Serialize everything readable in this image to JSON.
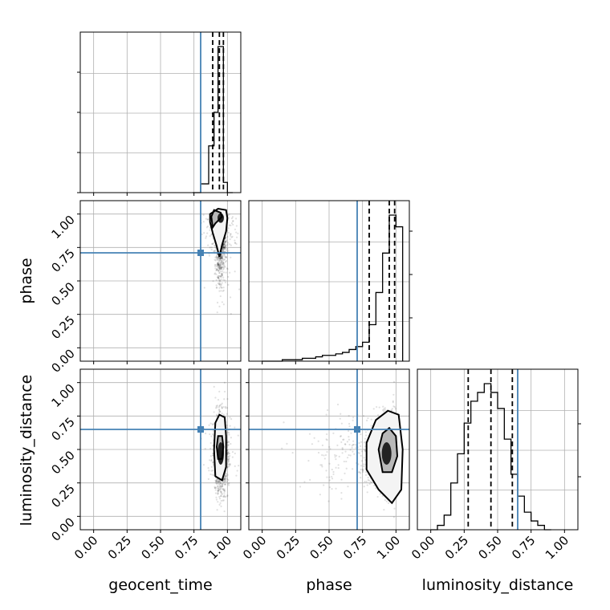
{
  "chart_data": {
    "type": "corner",
    "parameters": [
      "geocent_time",
      "phase",
      "luminosity_distance"
    ],
    "axis_range": [
      -0.1,
      1.1
    ],
    "ticks": [
      "0.00",
      "0.25",
      "0.50",
      "0.75",
      "1.00"
    ],
    "tick_values": [
      0,
      0.25,
      0.5,
      0.75,
      1.0
    ],
    "grid": true,
    "truths": {
      "geocent_time": 0.8,
      "phase": 0.71,
      "luminosity_distance": 0.65
    },
    "truth_color": "#4682b4",
    "histograms": {
      "geocent_time": {
        "bin_edges": [
          0.74,
          0.8,
          0.86,
          0.9,
          0.93,
          0.97,
          1.0,
          1.04
        ],
        "counts": [
          0.0,
          0.06,
          0.32,
          0.55,
          1.0,
          0.07,
          0.0
        ],
        "quantiles": [
          0.89,
          0.94,
          0.97
        ]
      },
      "phase": {
        "bin_edges": [
          0.0,
          0.05,
          0.1,
          0.15,
          0.2,
          0.25,
          0.3,
          0.35,
          0.4,
          0.45,
          0.5,
          0.55,
          0.6,
          0.65,
          0.7,
          0.75,
          0.8,
          0.85,
          0.9,
          0.95,
          1.0,
          1.05
        ],
        "counts": [
          0.0,
          0.0,
          0.0,
          0.01,
          0.01,
          0.01,
          0.02,
          0.02,
          0.03,
          0.04,
          0.04,
          0.05,
          0.06,
          0.08,
          0.1,
          0.13,
          0.25,
          0.47,
          0.74,
          1.0,
          0.92
        ],
        "quantiles": [
          0.8,
          0.95,
          0.99
        ]
      },
      "luminosity_distance": {
        "bin_edges": [
          0.0,
          0.05,
          0.1,
          0.15,
          0.2,
          0.25,
          0.3,
          0.35,
          0.4,
          0.45,
          0.5,
          0.55,
          0.6,
          0.65,
          0.7,
          0.75,
          0.8,
          0.85,
          0.9
        ],
        "counts": [
          0.0,
          0.03,
          0.1,
          0.32,
          0.52,
          0.73,
          0.88,
          0.94,
          1.0,
          0.94,
          0.83,
          0.62,
          0.38,
          0.23,
          0.12,
          0.06,
          0.03,
          0.0
        ],
        "quantiles": [
          0.28,
          0.45,
          0.61
        ]
      }
    },
    "scatter_centers": {
      "phase_vs_geocent_time": [
        0.95,
        0.85
      ],
      "luminosity_distance_vs_geocent_time": [
        0.95,
        0.47
      ],
      "luminosity_distance_vs_phase": [
        0.93,
        0.47
      ]
    },
    "contours": {
      "phase_vs_geocent_time": [
        [
          [
            0.91,
            0.93
          ],
          [
            0.96,
            0.98
          ],
          [
            0.95,
            1.01
          ],
          [
            0.9,
            1.03
          ],
          [
            0.88,
            0.98
          ],
          [
            0.89,
            0.9
          ],
          [
            0.91,
            0.93
          ]
        ],
        [
          [
            0.87,
            1.0
          ],
          [
            0.93,
            1.04
          ],
          [
            0.99,
            1.03
          ],
          [
            1.0,
            0.97
          ],
          [
            0.99,
            0.87
          ],
          [
            0.96,
            0.77
          ],
          [
            0.94,
            0.68
          ],
          [
            0.92,
            0.76
          ],
          [
            0.89,
            0.86
          ],
          [
            0.87,
            0.94
          ],
          [
            0.87,
            1.0
          ]
        ]
      ],
      "luminosity_distance_vs_geocent_time": [
        [
          [
            0.93,
            0.43
          ],
          [
            0.96,
            0.43
          ],
          [
            0.97,
            0.52
          ],
          [
            0.96,
            0.6
          ],
          [
            0.93,
            0.6
          ],
          [
            0.92,
            0.52
          ],
          [
            0.93,
            0.43
          ]
        ],
        [
          [
            0.91,
            0.3
          ],
          [
            0.96,
            0.27
          ],
          [
            0.99,
            0.37
          ],
          [
            0.99,
            0.6
          ],
          [
            0.98,
            0.74
          ],
          [
            0.94,
            0.76
          ],
          [
            0.91,
            0.7
          ],
          [
            0.9,
            0.5
          ],
          [
            0.91,
            0.3
          ]
        ]
      ],
      "luminosity_distance_vs_phase": [
        [
          [
            0.9,
            0.33
          ],
          [
            0.97,
            0.33
          ],
          [
            1.01,
            0.45
          ],
          [
            1.0,
            0.6
          ],
          [
            0.95,
            0.66
          ],
          [
            0.9,
            0.62
          ],
          [
            0.87,
            0.5
          ],
          [
            0.9,
            0.33
          ]
        ],
        [
          [
            0.87,
            0.2
          ],
          [
            0.97,
            0.1
          ],
          [
            1.04,
            0.2
          ],
          [
            1.05,
            0.5
          ],
          [
            1.02,
            0.76
          ],
          [
            0.94,
            0.79
          ],
          [
            0.85,
            0.72
          ],
          [
            0.78,
            0.55
          ],
          [
            0.78,
            0.35
          ],
          [
            0.87,
            0.2
          ]
        ]
      ]
    }
  }
}
